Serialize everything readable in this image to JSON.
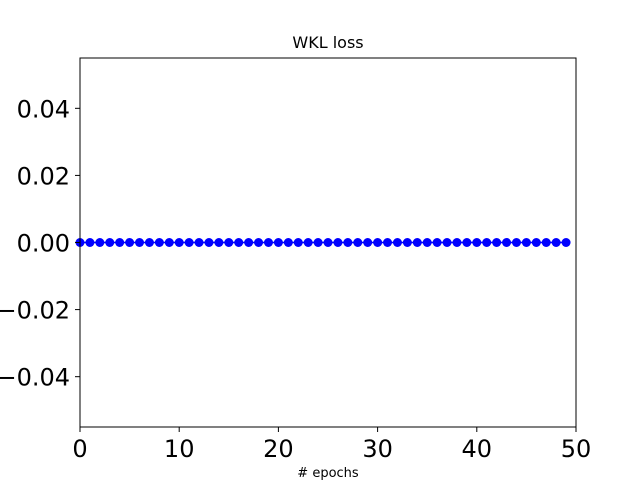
{
  "chart_data": {
    "type": "line",
    "title": "WKL loss",
    "xlabel": "# epochs",
    "ylabel": "",
    "xlim": [
      0,
      50
    ],
    "ylim": [
      -0.055,
      0.055
    ],
    "x_ticks": [
      0,
      10,
      20,
      30,
      40,
      50
    ],
    "x_tick_labels": [
      "0",
      "10",
      "20",
      "30",
      "40",
      "50"
    ],
    "y_ticks": [
      0.04,
      0.02,
      0.0,
      -0.02,
      -0.04
    ],
    "y_tick_labels": [
      "0.04",
      "0.02",
      "0.00",
      "−0.02",
      "−0.04"
    ],
    "grid": false,
    "legend": "none",
    "series": [
      {
        "color": "#0000ff",
        "marker": "circle",
        "x": [
          0,
          1,
          2,
          3,
          4,
          5,
          6,
          7,
          8,
          9,
          10,
          11,
          12,
          13,
          14,
          15,
          16,
          17,
          18,
          19,
          20,
          21,
          22,
          23,
          24,
          25,
          26,
          27,
          28,
          29,
          30,
          31,
          32,
          33,
          34,
          35,
          36,
          37,
          38,
          39,
          40,
          41,
          42,
          43,
          44,
          45,
          46,
          47,
          48,
          49
        ],
        "values": [
          0,
          0,
          0,
          0,
          0,
          0,
          0,
          0,
          0,
          0,
          0,
          0,
          0,
          0,
          0,
          0,
          0,
          0,
          0,
          0,
          0,
          0,
          0,
          0,
          0,
          0,
          0,
          0,
          0,
          0,
          0,
          0,
          0,
          0,
          0,
          0,
          0,
          0,
          0,
          0,
          0,
          0,
          0,
          0,
          0,
          0,
          0,
          0,
          0,
          0
        ]
      }
    ]
  }
}
